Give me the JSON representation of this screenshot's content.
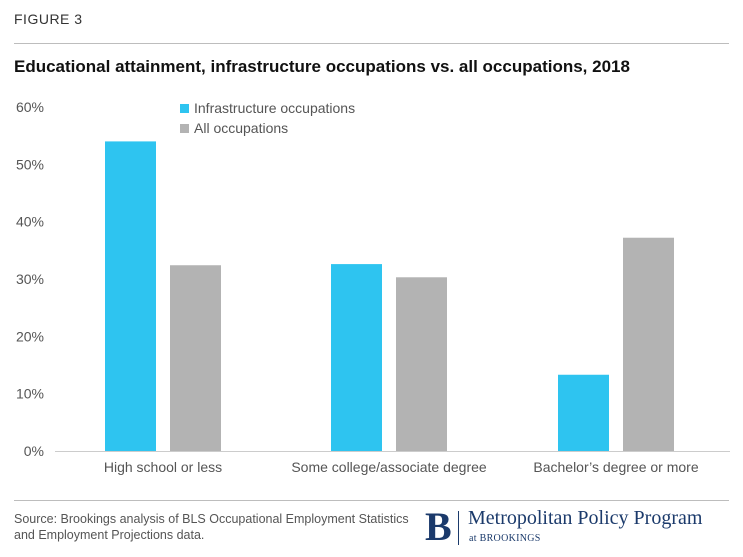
{
  "figure_label": "FIGURE 3",
  "source": "Source: Brookings analysis of BLS Occupational Employment Statistics and Employment Projections data.",
  "logo": {
    "name": "Metropolitan Policy Program",
    "sub": "at BROOKINGS"
  },
  "colors": {
    "infrastructure": "#2ec4f0",
    "all": "#b3b3b3",
    "axis": "#cccccc",
    "text": "#555555"
  },
  "chart_data": {
    "type": "bar",
    "title": "Educational attainment, infrastructure occupations vs. all occupations, 2018",
    "xlabel": "",
    "ylabel": "",
    "categories": [
      "High school or less",
      "Some college/associate degree",
      "Bachelor’s degree or more"
    ],
    "series": [
      {
        "name": "Infrastructure occupations",
        "values": [
          54,
          32.6,
          13.3
        ]
      },
      {
        "name": "All occupations",
        "values": [
          32.4,
          30.3,
          37.2
        ]
      }
    ],
    "ylim": [
      0,
      60
    ],
    "yticks": [
      "0%",
      "10%",
      "20%",
      "30%",
      "40%",
      "50%",
      "60%"
    ],
    "grid": false,
    "legend": "top-left"
  }
}
